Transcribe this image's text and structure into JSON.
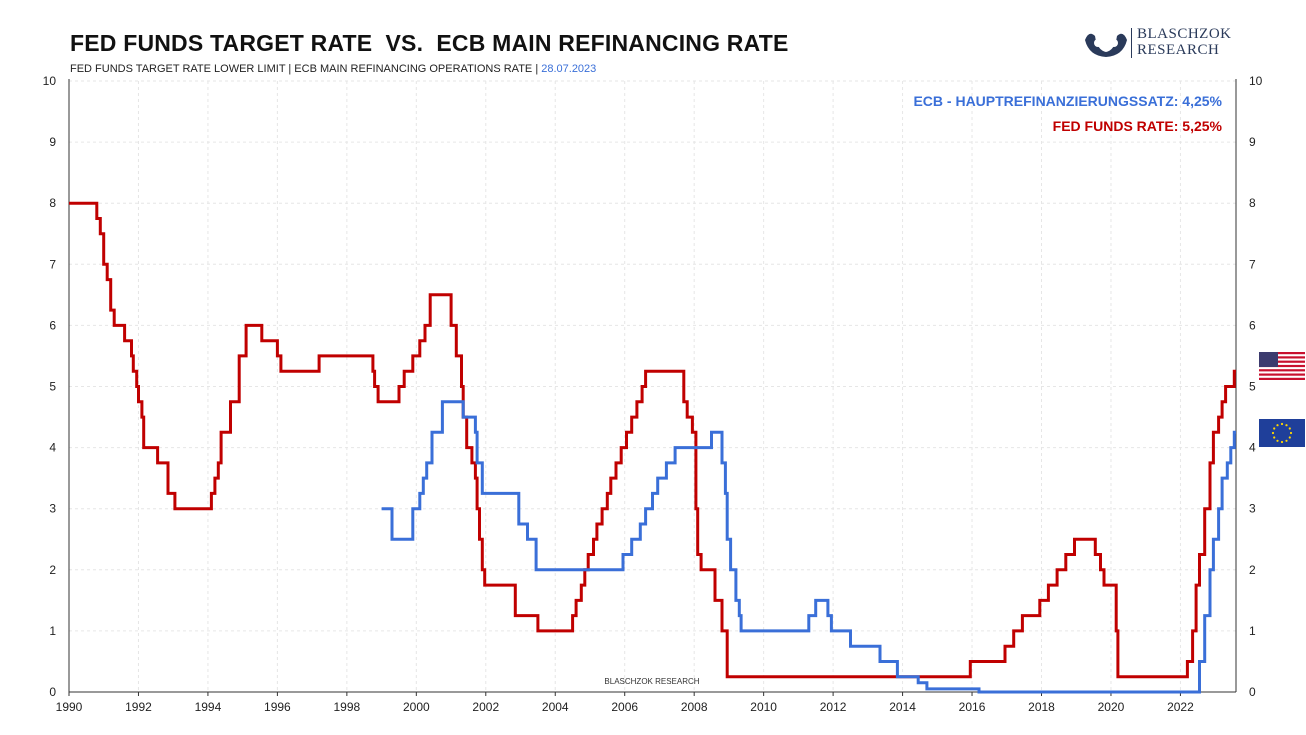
{
  "title": "FED FUNDS TARGET RATE  VS.  ECB MAIN REFINANCING RATE",
  "subtitle": "FED FUNDS TARGET RATE LOWER LIMIT | ECB MAIN REFINANCING OPERATIONS RATE | ",
  "subtitle_date": "28.07.2023",
  "logo": {
    "line1": "BLASCHZOK",
    "line2": "RESEARCH"
  },
  "watermark": "BLASCHZOK   RESEARCH",
  "legend": {
    "ecb": "ECB - HAUPTREFINANZIERUNGSSATZ: 4,25%",
    "fed": "FED FUNDS RATE: 5,25%"
  },
  "icons": {
    "us_flag": "us-flag-icon",
    "eu_flag": "eu-flag-icon"
  },
  "colors": {
    "fed": "#c00000",
    "ecb": "#3a6fd8",
    "grid": "#e6e6e6"
  },
  "chart_data": {
    "type": "line",
    "title": "FED FUNDS TARGET RATE  VS.  ECB MAIN REFINANCING RATE",
    "xlim": [
      1990,
      2023.6
    ],
    "ylim": [
      0,
      10
    ],
    "x_ticks": [
      "1990",
      "1992",
      "1994",
      "1996",
      "1998",
      "2000",
      "2002",
      "2004",
      "2006",
      "2008",
      "2010",
      "2012",
      "2014",
      "2016",
      "2018",
      "2020",
      "2022"
    ],
    "y_ticks": [
      "0",
      "1",
      "2",
      "3",
      "4",
      "5",
      "6",
      "7",
      "8",
      "9",
      "10"
    ],
    "grid": true,
    "legend_position": "top-right",
    "series": [
      {
        "name": "FED FUNDS RATE",
        "key": "fed",
        "points": [
          [
            1990.0,
            8.0
          ],
          [
            1990.8,
            7.75
          ],
          [
            1990.9,
            7.5
          ],
          [
            1991.0,
            7.0
          ],
          [
            1991.1,
            6.75
          ],
          [
            1991.2,
            6.25
          ],
          [
            1991.3,
            6.0
          ],
          [
            1991.6,
            5.75
          ],
          [
            1991.8,
            5.5
          ],
          [
            1991.85,
            5.25
          ],
          [
            1991.95,
            5.0
          ],
          [
            1992.0,
            4.75
          ],
          [
            1992.1,
            4.5
          ],
          [
            1992.15,
            4.0
          ],
          [
            1992.55,
            3.75
          ],
          [
            1992.85,
            3.25
          ],
          [
            1993.05,
            3.0
          ],
          [
            1994.1,
            3.25
          ],
          [
            1994.2,
            3.5
          ],
          [
            1994.3,
            3.75
          ],
          [
            1994.38,
            4.25
          ],
          [
            1994.65,
            4.75
          ],
          [
            1994.9,
            5.5
          ],
          [
            1995.1,
            6.0
          ],
          [
            1995.55,
            5.75
          ],
          [
            1996.0,
            5.5
          ],
          [
            1996.1,
            5.25
          ],
          [
            1997.2,
            5.5
          ],
          [
            1998.75,
            5.25
          ],
          [
            1998.8,
            5.0
          ],
          [
            1998.9,
            4.75
          ],
          [
            1999.5,
            5.0
          ],
          [
            1999.65,
            5.25
          ],
          [
            1999.9,
            5.5
          ],
          [
            2000.1,
            5.75
          ],
          [
            2000.25,
            6.0
          ],
          [
            2000.4,
            6.5
          ],
          [
            2001.0,
            6.0
          ],
          [
            2001.15,
            5.5
          ],
          [
            2001.3,
            5.0
          ],
          [
            2001.35,
            4.5
          ],
          [
            2001.45,
            4.0
          ],
          [
            2001.6,
            3.75
          ],
          [
            2001.7,
            3.5
          ],
          [
            2001.75,
            3.0
          ],
          [
            2001.82,
            2.5
          ],
          [
            2001.9,
            2.0
          ],
          [
            2001.97,
            1.75
          ],
          [
            2002.85,
            1.25
          ],
          [
            2003.5,
            1.0
          ],
          [
            2004.5,
            1.25
          ],
          [
            2004.6,
            1.5
          ],
          [
            2004.75,
            1.75
          ],
          [
            2004.85,
            2.0
          ],
          [
            2004.95,
            2.25
          ],
          [
            2005.1,
            2.5
          ],
          [
            2005.2,
            2.75
          ],
          [
            2005.35,
            3.0
          ],
          [
            2005.5,
            3.25
          ],
          [
            2005.6,
            3.5
          ],
          [
            2005.75,
            3.75
          ],
          [
            2005.9,
            4.0
          ],
          [
            2006.05,
            4.25
          ],
          [
            2006.2,
            4.5
          ],
          [
            2006.35,
            4.75
          ],
          [
            2006.5,
            5.0
          ],
          [
            2006.6,
            5.25
          ],
          [
            2007.7,
            4.75
          ],
          [
            2007.8,
            4.5
          ],
          [
            2007.95,
            4.25
          ],
          [
            2008.05,
            3.0
          ],
          [
            2008.1,
            2.25
          ],
          [
            2008.2,
            2.0
          ],
          [
            2008.6,
            1.5
          ],
          [
            2008.8,
            1.0
          ],
          [
            2008.95,
            0.25
          ],
          [
            2015.95,
            0.5
          ],
          [
            2016.95,
            0.75
          ],
          [
            2017.2,
            1.0
          ],
          [
            2017.45,
            1.25
          ],
          [
            2017.95,
            1.5
          ],
          [
            2018.2,
            1.75
          ],
          [
            2018.45,
            2.0
          ],
          [
            2018.7,
            2.25
          ],
          [
            2018.95,
            2.5
          ],
          [
            2019.55,
            2.25
          ],
          [
            2019.7,
            2.0
          ],
          [
            2019.8,
            1.75
          ],
          [
            2020.15,
            1.0
          ],
          [
            2020.2,
            0.25
          ],
          [
            2022.2,
            0.5
          ],
          [
            2022.35,
            1.0
          ],
          [
            2022.45,
            1.75
          ],
          [
            2022.55,
            2.25
          ],
          [
            2022.7,
            3.0
          ],
          [
            2022.85,
            3.75
          ],
          [
            2022.95,
            4.25
          ],
          [
            2023.1,
            4.5
          ],
          [
            2023.2,
            4.75
          ],
          [
            2023.3,
            5.0
          ],
          [
            2023.55,
            5.25
          ]
        ],
        "end_x": 2023.6
      },
      {
        "name": "ECB - HAUPTREFINANZIERUNGSSATZ",
        "key": "ecb",
        "points": [
          [
            1999.0,
            3.0
          ],
          [
            1999.3,
            2.5
          ],
          [
            1999.9,
            3.0
          ],
          [
            2000.1,
            3.25
          ],
          [
            2000.2,
            3.5
          ],
          [
            2000.3,
            3.75
          ],
          [
            2000.45,
            4.25
          ],
          [
            2000.75,
            4.75
          ],
          [
            2001.35,
            4.5
          ],
          [
            2001.7,
            4.25
          ],
          [
            2001.75,
            3.75
          ],
          [
            2001.9,
            3.25
          ],
          [
            2002.95,
            2.75
          ],
          [
            2003.2,
            2.5
          ],
          [
            2003.45,
            2.0
          ],
          [
            2005.95,
            2.25
          ],
          [
            2006.2,
            2.5
          ],
          [
            2006.45,
            2.75
          ],
          [
            2006.6,
            3.0
          ],
          [
            2006.8,
            3.25
          ],
          [
            2006.95,
            3.5
          ],
          [
            2007.2,
            3.75
          ],
          [
            2007.45,
            4.0
          ],
          [
            2008.5,
            4.25
          ],
          [
            2008.8,
            3.75
          ],
          [
            2008.9,
            3.25
          ],
          [
            2008.95,
            2.5
          ],
          [
            2009.05,
            2.0
          ],
          [
            2009.2,
            1.5
          ],
          [
            2009.3,
            1.25
          ],
          [
            2009.35,
            1.0
          ],
          [
            2011.3,
            1.25
          ],
          [
            2011.5,
            1.5
          ],
          [
            2011.85,
            1.25
          ],
          [
            2011.95,
            1.0
          ],
          [
            2012.5,
            0.75
          ],
          [
            2013.35,
            0.5
          ],
          [
            2013.85,
            0.25
          ],
          [
            2014.45,
            0.15
          ],
          [
            2014.7,
            0.05
          ],
          [
            2016.2,
            0.0
          ],
          [
            2022.55,
            0.5
          ],
          [
            2022.7,
            1.25
          ],
          [
            2022.85,
            2.0
          ],
          [
            2022.95,
            2.5
          ],
          [
            2023.1,
            3.0
          ],
          [
            2023.2,
            3.5
          ],
          [
            2023.35,
            3.75
          ],
          [
            2023.45,
            4.0
          ],
          [
            2023.55,
            4.25
          ]
        ],
        "end_x": 2023.6
      }
    ]
  }
}
